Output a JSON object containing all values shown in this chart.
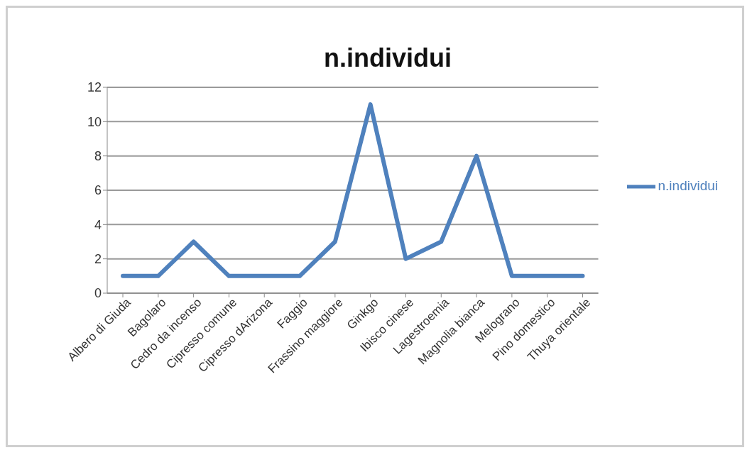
{
  "chart_data": {
    "type": "line",
    "title": "n.individui",
    "categories": [
      "Albero di Giuda",
      "Bagolaro",
      "Cedro da incenso",
      "Cipresso comune",
      "Cipresso dArizona",
      "Faggio",
      "Frassino maggiore",
      "Ginkgo",
      "Ibisco cinese",
      "Lagestroemia",
      "Magnolia bianca",
      "Melograno",
      "Pino domestico",
      "Thuya orientale"
    ],
    "series": [
      {
        "name": "n.individui",
        "color": "#4f81bd",
        "values": [
          1,
          1,
          3,
          1,
          1,
          1,
          3,
          11,
          2,
          3,
          8,
          1,
          1,
          1
        ]
      }
    ],
    "ylim": [
      0,
      12
    ],
    "yticks": [
      0,
      2,
      4,
      6,
      8,
      10,
      12
    ],
    "grid": "y",
    "legend": "right",
    "marker": "none",
    "line_style": "solid"
  }
}
